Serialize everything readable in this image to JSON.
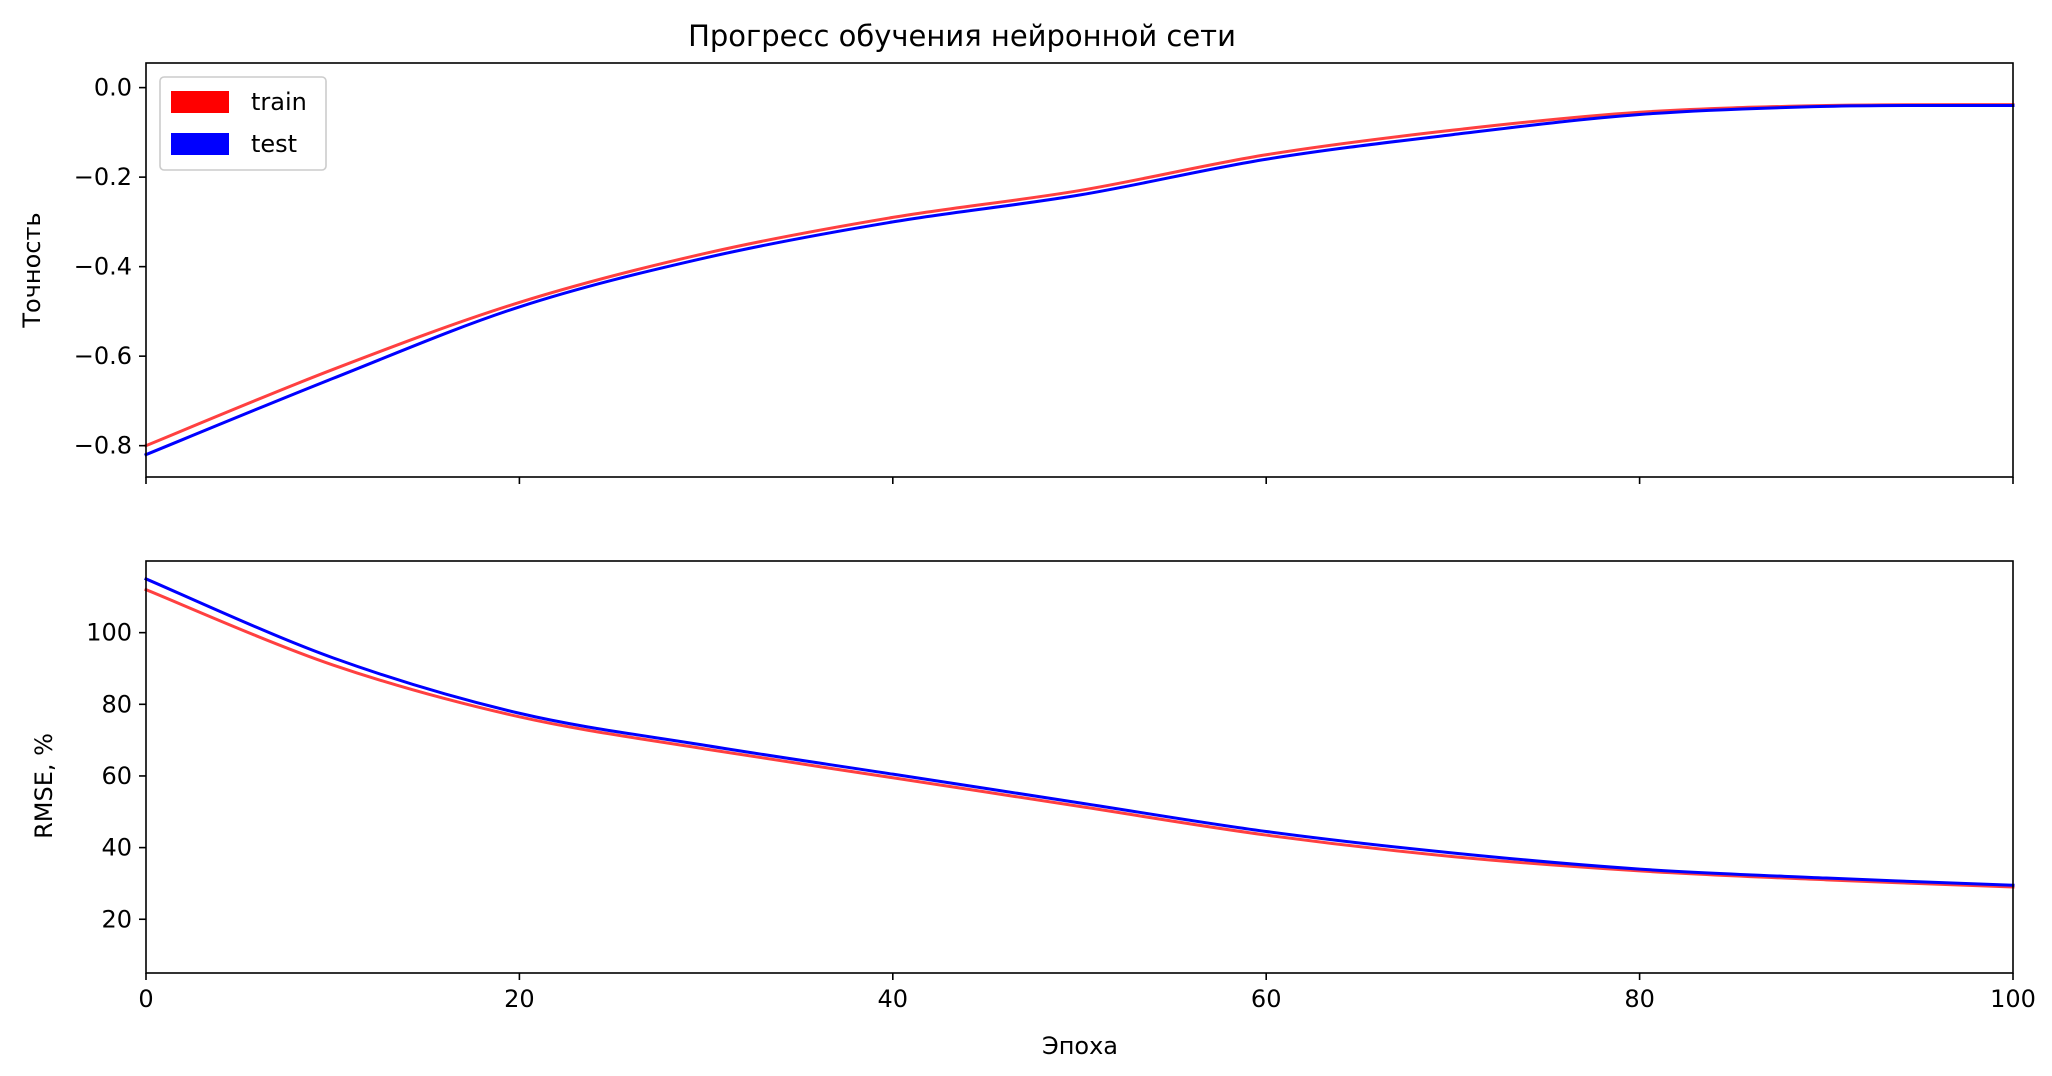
{
  "chart_data": [
    {
      "type": "line",
      "title": "Прогресс обучения нейронной сети",
      "xlabel": "",
      "ylabel": "Точность",
      "xlim": [
        0,
        100
      ],
      "ylim": [
        -0.87,
        0.055
      ],
      "xticks": [
        0,
        20,
        40,
        60,
        80,
        100
      ],
      "yticks": [
        {
          "value": 0.0,
          "label": "0.0"
        },
        {
          "value": -0.2,
          "label": "−0.2"
        },
        {
          "value": -0.4,
          "label": "−0.4"
        },
        {
          "value": -0.6,
          "label": "−0.6"
        },
        {
          "value": -0.8,
          "label": "−0.8"
        }
      ],
      "legend": {
        "placement": "upper-left",
        "entries": [
          "train",
          "test"
        ]
      },
      "grid": false,
      "x": [
        0,
        10,
        20,
        30,
        40,
        50,
        60,
        70,
        80,
        90,
        100
      ],
      "series": [
        {
          "name": "train",
          "color": "#ff0000",
          "values": [
            -0.8,
            -0.63,
            -0.48,
            -0.37,
            -0.29,
            -0.23,
            -0.15,
            -0.095,
            -0.055,
            -0.04,
            -0.038
          ]
        },
        {
          "name": "test",
          "color": "#0000ff",
          "values": [
            -0.82,
            -0.65,
            -0.49,
            -0.38,
            -0.3,
            -0.24,
            -0.16,
            -0.105,
            -0.06,
            -0.042,
            -0.04
          ]
        }
      ]
    },
    {
      "type": "line",
      "title": "",
      "xlabel": "Эпоха",
      "ylabel": "RMSE, %",
      "xlim": [
        0,
        100
      ],
      "ylim": [
        5,
        120
      ],
      "xticks": [
        0,
        20,
        40,
        60,
        80,
        100
      ],
      "yticks": [
        {
          "value": 20,
          "label": "20"
        },
        {
          "value": 40,
          "label": "40"
        },
        {
          "value": 60,
          "label": "60"
        },
        {
          "value": 80,
          "label": "80"
        },
        {
          "value": 100,
          "label": "100"
        }
      ],
      "grid": false,
      "x": [
        0,
        10,
        20,
        30,
        40,
        50,
        60,
        70,
        80,
        90,
        100
      ],
      "series": [
        {
          "name": "train",
          "color": "#ff0000",
          "values": [
            112,
            91,
            76.5,
            67.5,
            59.5,
            51.5,
            43.5,
            37.5,
            33.5,
            31,
            29
          ]
        },
        {
          "name": "test",
          "color": "#0000ff",
          "values": [
            115,
            93,
            77.5,
            68.5,
            60.5,
            52.5,
            44.5,
            38.5,
            34,
            31.5,
            29.5
          ]
        }
      ]
    }
  ]
}
